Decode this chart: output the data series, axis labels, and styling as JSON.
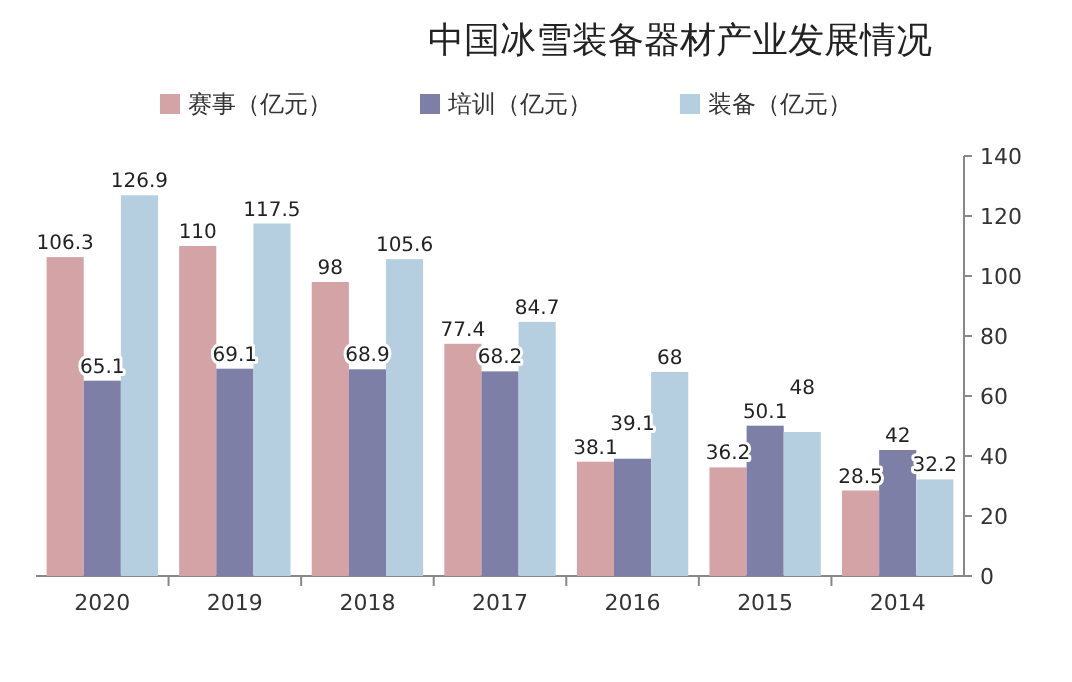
{
  "chart_data": {
    "type": "bar",
    "title": "中国冰雪装备器材产业发展情况",
    "categories": [
      "2020",
      "2019",
      "2018",
      "2017",
      "2016",
      "2015",
      "2014"
    ],
    "series": [
      {
        "name": "赛事（亿元）",
        "color": "#d4a3a6",
        "values": [
          106.3,
          110,
          98,
          77.4,
          38.1,
          36.2,
          28.5
        ]
      },
      {
        "name": "培训（亿元）",
        "color": "#7d7fa6",
        "values": [
          65.1,
          69.1,
          68.9,
          68.2,
          39.1,
          50.1,
          42
        ]
      },
      {
        "name": "装备（亿元）",
        "color": "#b5cfe0",
        "values": [
          126.9,
          117.5,
          105.6,
          84.7,
          68,
          48,
          32.2
        ]
      }
    ],
    "ylim": [
      0,
      140
    ],
    "yticks": [
      0,
      20,
      40,
      60,
      80,
      100,
      120,
      140
    ],
    "data_labels": true,
    "legend": "top",
    "grid": false
  }
}
